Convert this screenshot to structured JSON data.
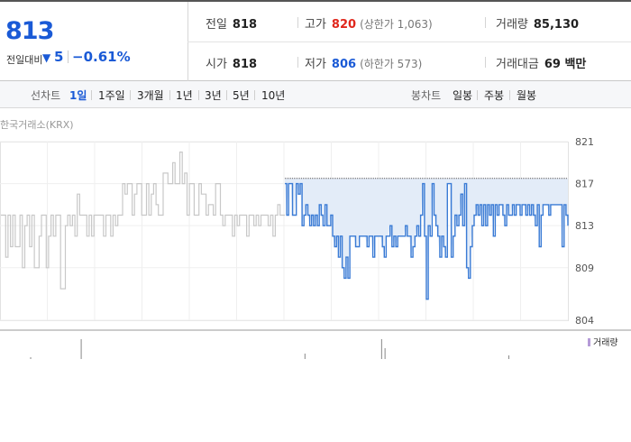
{
  "quote": {
    "price": "813",
    "diff_label": "전일대비",
    "diff_arrow": "▼",
    "diff_value": "5",
    "diff_percent": "−0.61%",
    "prev_close_label": "전일",
    "prev_close": "818",
    "open_label": "시가",
    "open": "818",
    "high_label": "고가",
    "high": "820",
    "upper_limit": "(상한가 1,063)",
    "low_label": "저가",
    "low": "806",
    "lower_limit": "(하한가 573)",
    "volume_label": "거래량",
    "volume": "85,130",
    "amount_label": "거래대금",
    "amount": "69 백만"
  },
  "tabs": {
    "line_label": "선차트",
    "line_items": [
      "1일",
      "1주일",
      "3개월",
      "1년",
      "3년",
      "5년",
      "10년"
    ],
    "active_index": 0,
    "candle_label": "봉차트",
    "candle_items": [
      "일봉",
      "주봉",
      "월봉"
    ]
  },
  "source": "한국거래소(KRX)",
  "volume_legend": "거래량",
  "colors": {
    "today": "#3a7bd5",
    "prev": "#c8c8c8",
    "fill": "#e3ecf8",
    "accent": "#1a5ad6",
    "up": "#e0271c"
  },
  "chart_data": {
    "type": "line",
    "yticks": [
      "821",
      "817",
      "813",
      "809",
      "804"
    ],
    "ylim": [
      804,
      821
    ],
    "reference_line": 817.5,
    "series": [
      {
        "values": [
          814,
          814,
          810,
          814,
          811,
          814,
          811,
          811,
          814,
          809,
          813,
          814,
          811,
          814,
          809,
          809,
          812,
          814,
          814,
          809,
          812,
          814,
          812,
          814,
          814,
          807,
          807,
          813,
          814,
          813,
          814,
          812,
          816,
          814,
          814,
          814,
          812,
          814,
          812,
          814,
          814,
          814,
          814,
          812,
          814,
          814,
          812,
          814,
          813,
          814,
          814,
          817,
          816,
          817,
          817,
          814,
          816,
          817,
          817,
          814,
          814,
          817,
          814,
          816,
          817,
          815,
          814,
          814,
          818,
          818,
          817,
          817,
          819,
          817,
          817,
          820,
          817,
          818,
          814,
          817,
          817,
          814,
          814,
          817,
          816,
          816,
          814,
          815,
          815,
          814,
          817,
          817,
          814,
          813,
          814,
          814,
          814,
          812,
          814,
          813,
          814,
          814,
          814,
          812,
          814,
          814,
          813,
          814,
          813,
          814,
          814,
          814,
          813,
          814,
          812,
          814,
          815,
          814,
          814,
          814
        ]
      },
      {
        "values": [
          817,
          814,
          817,
          817,
          814,
          814,
          817,
          816,
          817,
          813,
          814,
          815,
          814,
          813,
          814,
          813,
          814,
          813,
          815,
          814,
          813,
          815,
          813,
          813,
          814,
          812,
          811,
          812,
          810,
          812,
          809,
          808,
          810,
          808,
          812,
          812,
          812,
          811,
          811,
          812,
          812,
          812,
          812,
          811,
          812,
          812,
          810,
          812,
          812,
          812,
          812,
          811,
          810,
          812,
          812,
          813,
          811,
          812,
          811,
          812,
          812,
          812,
          812,
          813,
          812,
          812,
          810,
          811,
          812,
          813,
          812,
          814,
          817,
          812,
          806,
          813,
          812,
          817,
          814,
          813,
          812,
          810,
          812,
          811,
          810,
          817,
          817,
          810,
          812,
          814,
          813,
          814,
          816,
          813,
          817,
          809,
          808,
          811,
          813,
          814,
          815,
          814,
          815,
          813,
          815,
          813,
          815,
          814,
          815,
          812,
          815,
          814,
          815,
          815,
          814,
          813,
          815,
          814,
          814,
          815,
          814,
          815,
          815,
          814,
          815,
          815,
          814,
          815,
          814,
          815,
          814,
          813,
          815,
          811,
          814,
          815,
          815,
          815,
          814,
          815,
          815,
          815,
          815,
          815,
          815,
          811,
          815,
          814,
          813
        ]
      }
    ],
    "volume_bars": [
      {
        "pos": 0.054,
        "h": 2
      },
      {
        "pos": 0.143,
        "h": 22
      },
      {
        "pos": 0.537,
        "h": 6
      },
      {
        "pos": 0.672,
        "h": 22
      },
      {
        "pos": 0.678,
        "h": 12
      },
      {
        "pos": 0.896,
        "h": 4
      }
    ]
  }
}
